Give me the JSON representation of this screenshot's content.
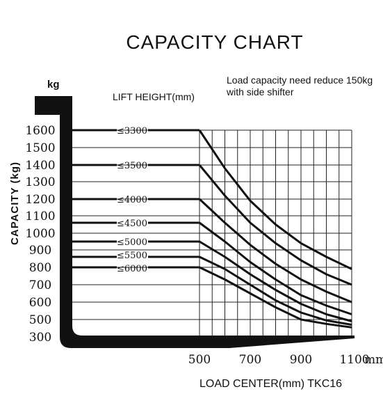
{
  "chart_data": {
    "type": "line",
    "title": "CAPACITY CHART",
    "note": [
      "Load capacity need reduce 150kg",
      "with side shifter"
    ],
    "legend_title": "LIFT HEIGHT(mm)",
    "unit_label": "kg",
    "ylabel": "CAPACITY (kg)",
    "xlabel": "LOAD CENTER(mm) TKC16",
    "x_unit": "mm",
    "xlim": [
      500,
      1100
    ],
    "ylim": [
      300,
      1600
    ],
    "yticks": [
      1600,
      1500,
      1400,
      1300,
      1200,
      1100,
      1000,
      900,
      800,
      700,
      600,
      500,
      300
    ],
    "xticks": [
      500,
      700,
      900,
      1100
    ],
    "x": [
      500,
      600,
      700,
      800,
      900,
      1000,
      1100
    ],
    "series": [
      {
        "name": "≤3300",
        "values": [
          1600,
          1380,
          1190,
          1050,
          940,
          860,
          790
        ]
      },
      {
        "name": "≤3500",
        "values": [
          1400,
          1220,
          1060,
          940,
          840,
          760,
          700
        ]
      },
      {
        "name": "≤4000",
        "values": [
          1200,
          1060,
          930,
          820,
          730,
          660,
          600
        ]
      },
      {
        "name": "≤4500",
        "values": [
          1060,
          950,
          830,
          730,
          640,
          580,
          530
        ]
      },
      {
        "name": "≤5000",
        "values": [
          950,
          860,
          760,
          670,
          590,
          530,
          480
        ]
      },
      {
        "name": "≤5500",
        "values": [
          860,
          790,
          700,
          610,
          540,
          490,
          440
        ]
      },
      {
        "name": "≤6000",
        "values": [
          800,
          730,
          650,
          570,
          500,
          450,
          410
        ]
      }
    ],
    "grid": true
  }
}
